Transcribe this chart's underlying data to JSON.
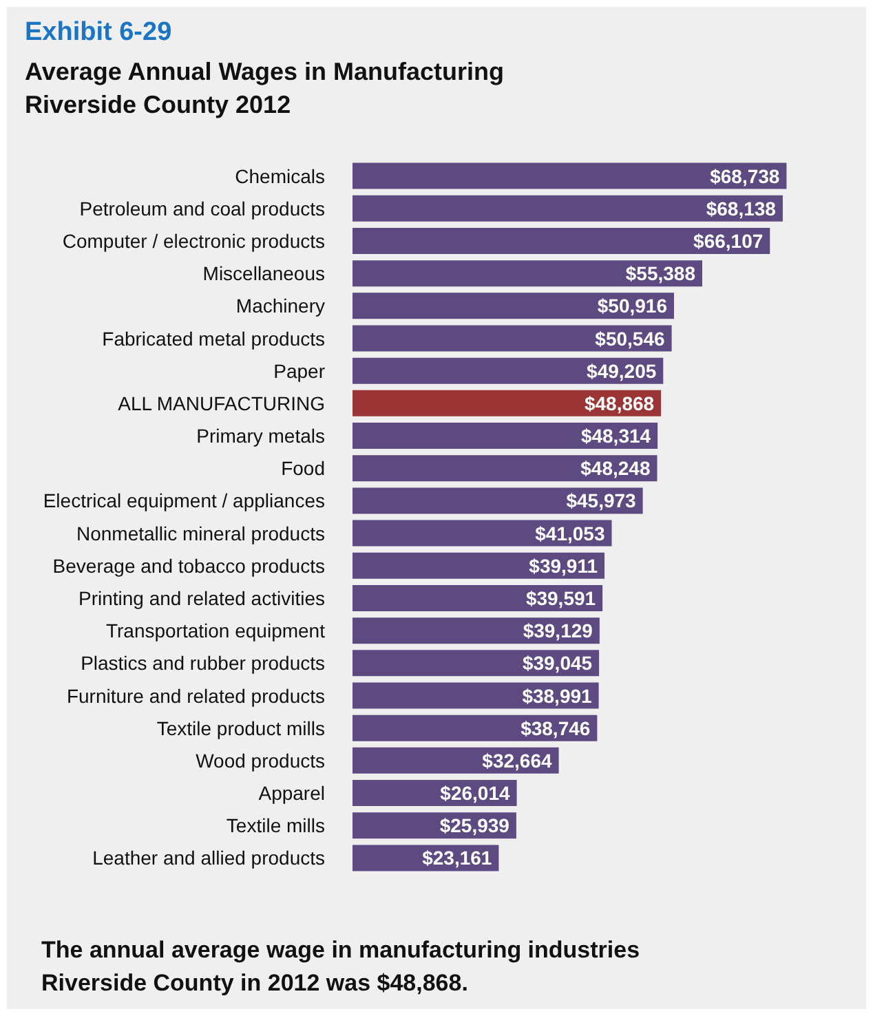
{
  "chart_data": {
    "type": "bar",
    "orientation": "horizontal",
    "subtitle": "Exhibit 6-29",
    "title": "Average Annual Wages in Manufacturing\nRiverside County 2012",
    "categories": [
      "Chemicals",
      "Petroleum and coal products",
      "Computer / electronic products",
      "Miscellaneous",
      "Machinery",
      "Fabricated metal products",
      "Paper",
      "ALL MANUFACTURING",
      "Primary metals",
      "Food",
      "Electrical equipment / appliances",
      "Nonmetallic mineral products",
      "Beverage and tobacco products",
      "Printing and related activities",
      "Transportation equipment",
      "Plastics and rubber products",
      "Furniture and related products",
      "Textile product mills",
      "Wood products",
      "Apparel",
      "Textile mills",
      "Leather and allied products"
    ],
    "values": [
      68738,
      68138,
      66107,
      55388,
      50916,
      50546,
      49205,
      48868,
      48314,
      48248,
      45973,
      41053,
      39911,
      39591,
      39129,
      39045,
      38991,
      38746,
      32664,
      26014,
      25939,
      23161
    ],
    "value_labels": [
      "$68,738",
      "$68,138",
      "$66,107",
      "$55,388",
      "$50,916",
      "$50,546",
      "$49,205",
      "$48,868",
      "$48,314",
      "$48,248",
      "$45,973",
      "$41,053",
      "$39,911",
      "$39,591",
      "$39,129",
      "$39,045",
      "$38,991",
      "$38,746",
      "$32,664",
      "$26,014",
      "$25,939",
      "$23,161"
    ],
    "colors": [
      "#5c4a80",
      "#5c4a80",
      "#5c4a80",
      "#5c4a80",
      "#5c4a80",
      "#5c4a80",
      "#5c4a80",
      "#9b3535",
      "#5c4a80",
      "#5c4a80",
      "#5c4a80",
      "#5c4a80",
      "#5c4a80",
      "#5c4a80",
      "#5c4a80",
      "#5c4a80",
      "#5c4a80",
      "#5c4a80",
      "#5c4a80",
      "#5c4a80",
      "#5c4a80",
      "#5c4a80"
    ],
    "tick_labels": "y",
    "annotations": [
      "The annual average wage in manufacturing industries\nRiverside County in 2012 was $48,868."
    ]
  }
}
